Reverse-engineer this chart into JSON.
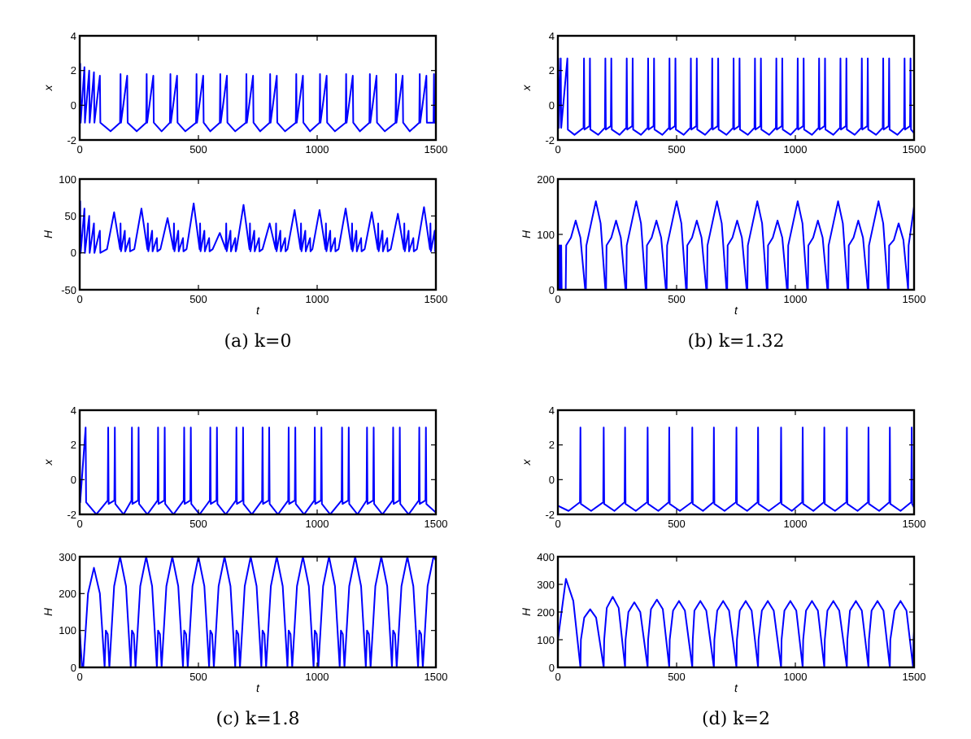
{
  "chart_data": [
    {
      "type": "line",
      "ylabel": "x",
      "xlim": [
        0,
        1500
      ],
      "ylim": [
        -2,
        4
      ],
      "xticks": [
        0,
        500,
        1000,
        1500
      ],
      "yticks": [
        -2,
        0,
        2,
        4
      ],
      "x": [
        0,
        2,
        4,
        20,
        22,
        40,
        42,
        60,
        62,
        85,
        87,
        130,
        170,
        172,
        174,
        200,
        202,
        240,
        280,
        282,
        284,
        310,
        312,
        345,
        380,
        382,
        384,
        410,
        412,
        445,
        490,
        492,
        494,
        520,
        522,
        550,
        590,
        592,
        594,
        620,
        622,
        655,
        700,
        702,
        704,
        730,
        732,
        760,
        800,
        802,
        804,
        830,
        832,
        865,
        910,
        912,
        914,
        940,
        942,
        970,
        1010,
        1012,
        1014,
        1040,
        1042,
        1075,
        1120,
        1122,
        1124,
        1150,
        1152,
        1180,
        1220,
        1222,
        1224,
        1250,
        1252,
        1285,
        1330,
        1332,
        1334,
        1360,
        1362,
        1390,
        1430,
        1432,
        1434,
        1460,
        1462,
        1490,
        1492,
        1494,
        1500
      ],
      "series": [
        {
          "color": "#0000ff",
          "values": [
            -1,
            2.4,
            -1,
            2.2,
            -1,
            2,
            -1,
            1.9,
            -1,
            1.7,
            -1,
            -1.5,
            -1,
            1.8,
            -1,
            1.7,
            -1,
            -1.5,
            -1,
            1.8,
            -1,
            1.7,
            -1,
            -1.5,
            -1,
            1.8,
            -1,
            1.7,
            -1,
            -1.5,
            -1,
            1.8,
            -1,
            1.7,
            -1,
            -1.5,
            -1,
            1.8,
            -1,
            1.7,
            -1,
            -1.5,
            -1,
            1.8,
            -1,
            1.7,
            -1,
            -1.5,
            -1,
            1.8,
            -1,
            1.7,
            -1,
            -1.5,
            -1,
            1.8,
            -1,
            1.7,
            -1,
            -1.5,
            -1,
            1.8,
            -1,
            1.7,
            -1,
            -1.5,
            -1,
            1.8,
            -1,
            1.7,
            -1,
            -1.5,
            -1,
            1.8,
            -1,
            1.7,
            -1,
            -1.5,
            -1,
            1.8,
            -1,
            1.7,
            -1,
            -1.5,
            -1,
            1.8,
            -1,
            1.7,
            -1,
            -1,
            1.8,
            -1,
            -1
          ]
        }
      ]
    },
    {
      "type": "line",
      "xlabel": "t",
      "ylabel": "H",
      "annotations": [
        "(a) k=0"
      ],
      "xlim": [
        0,
        1500
      ],
      "ylim": [
        -50,
        100
      ],
      "xticks": [
        0,
        500,
        1000,
        1500
      ],
      "yticks": [
        -50,
        0,
        50,
        100
      ],
      "x": [
        0,
        2,
        4,
        20,
        22,
        40,
        42,
        60,
        62,
        85,
        87,
        115,
        145,
        170,
        172,
        174,
        190,
        192,
        210,
        212,
        230,
        260,
        285,
        287,
        289,
        305,
        307,
        325,
        327,
        340,
        370,
        395,
        397,
        399,
        415,
        417,
        435,
        437,
        450,
        480,
        505,
        507,
        509,
        525,
        527,
        545,
        547,
        560,
        590,
        615,
        617,
        619,
        635,
        637,
        655,
        657,
        660,
        690,
        715,
        717,
        719,
        735,
        737,
        755,
        757,
        770,
        800,
        825,
        827,
        829,
        845,
        847,
        865,
        867,
        875,
        905,
        930,
        932,
        934,
        950,
        952,
        970,
        972,
        980,
        1010,
        1035,
        1037,
        1039,
        1055,
        1057,
        1075,
        1077,
        1090,
        1120,
        1145,
        1147,
        1149,
        1165,
        1167,
        1185,
        1187,
        1200,
        1230,
        1255,
        1257,
        1259,
        1275,
        1277,
        1295,
        1297,
        1310,
        1340,
        1365,
        1367,
        1369,
        1385,
        1387,
        1405,
        1407,
        1420,
        1450,
        1475,
        1477,
        1479,
        1495,
        1497,
        1500
      ],
      "series": [
        {
          "color": "#0000ff",
          "values": [
            0,
            70,
            0,
            60,
            0,
            50,
            0,
            40,
            0,
            30,
            0,
            5,
            55,
            5,
            40,
            2,
            30,
            2,
            20,
            2,
            5,
            60,
            5,
            40,
            2,
            30,
            2,
            20,
            2,
            5,
            47,
            5,
            40,
            2,
            30,
            2,
            20,
            2,
            5,
            67,
            5,
            40,
            2,
            30,
            2,
            20,
            2,
            5,
            27,
            5,
            40,
            2,
            30,
            2,
            20,
            2,
            5,
            65,
            5,
            40,
            2,
            30,
            2,
            20,
            2,
            5,
            40,
            5,
            40,
            2,
            30,
            2,
            20,
            2,
            5,
            58,
            5,
            40,
            2,
            30,
            2,
            20,
            2,
            5,
            58,
            5,
            40,
            2,
            30,
            2,
            20,
            2,
            5,
            60,
            5,
            40,
            2,
            30,
            2,
            20,
            2,
            5,
            55,
            5,
            40,
            2,
            30,
            2,
            20,
            2,
            5,
            53,
            5,
            40,
            2,
            30,
            2,
            20,
            2,
            5,
            62,
            5,
            40,
            2,
            30,
            2,
            35
          ]
        }
      ]
    },
    {
      "type": "line",
      "ylabel": "x",
      "xlim": [
        0,
        1500
      ],
      "ylim": [
        -2,
        4
      ],
      "xticks": [
        0,
        500,
        1000,
        1500
      ],
      "yticks": [
        -2,
        0,
        2,
        4
      ],
      "x": [
        0,
        2,
        4,
        12,
        14,
        40,
        42,
        70,
        108,
        110,
        112,
        133,
        135,
        137,
        170,
        198,
        200,
        202,
        223,
        225,
        227,
        260,
        288,
        290,
        292,
        313,
        315,
        317,
        350,
        378,
        380,
        382,
        403,
        405,
        407,
        440,
        468,
        470,
        472,
        493,
        495,
        497,
        530,
        558,
        560,
        562,
        583,
        585,
        587,
        620,
        648,
        650,
        652,
        673,
        675,
        677,
        710,
        738,
        740,
        742,
        763,
        765,
        767,
        800,
        828,
        830,
        832,
        853,
        855,
        857,
        890,
        918,
        920,
        922,
        943,
        945,
        947,
        980,
        1008,
        1010,
        1012,
        1033,
        1035,
        1037,
        1070,
        1098,
        1100,
        1102,
        1123,
        1125,
        1127,
        1160,
        1188,
        1190,
        1192,
        1213,
        1215,
        1217,
        1250,
        1278,
        1280,
        1282,
        1303,
        1305,
        1307,
        1340,
        1368,
        1370,
        1372,
        1393,
        1395,
        1397,
        1430,
        1458,
        1460,
        1462,
        1483,
        1485,
        1487,
        1500
      ],
      "series": [
        {
          "color": "#0000ff",
          "values": [
            -1.3,
            2.7,
            -1.3,
            2.7,
            -1.3,
            2.7,
            -1.4,
            -1.7,
            -1.3,
            2.7,
            -1.4,
            -1.2,
            2.7,
            -1.4,
            -1.7,
            -1.3,
            2.7,
            -1.4,
            -1.2,
            2.7,
            -1.4,
            -1.7,
            -1.3,
            2.7,
            -1.4,
            -1.2,
            2.7,
            -1.4,
            -1.7,
            -1.3,
            2.7,
            -1.4,
            -1.2,
            2.7,
            -1.4,
            -1.7,
            -1.3,
            2.7,
            -1.4,
            -1.2,
            2.7,
            -1.4,
            -1.7,
            -1.3,
            2.7,
            -1.4,
            -1.2,
            2.7,
            -1.4,
            -1.7,
            -1.3,
            2.7,
            -1.4,
            -1.2,
            2.7,
            -1.4,
            -1.7,
            -1.3,
            2.7,
            -1.4,
            -1.2,
            2.7,
            -1.4,
            -1.7,
            -1.3,
            2.7,
            -1.4,
            -1.2,
            2.7,
            -1.4,
            -1.7,
            -1.3,
            2.7,
            -1.4,
            -1.2,
            2.7,
            -1.4,
            -1.7,
            -1.3,
            2.7,
            -1.4,
            -1.2,
            2.7,
            -1.4,
            -1.7,
            -1.3,
            2.7,
            -1.4,
            -1.2,
            2.7,
            -1.4,
            -1.7,
            -1.3,
            2.7,
            -1.4,
            -1.2,
            2.7,
            -1.4,
            -1.7,
            -1.3,
            2.7,
            -1.4,
            -1.2,
            2.7,
            -1.4,
            -1.7,
            -1.3,
            2.7,
            -1.4,
            -1.2,
            2.7,
            -1.4,
            -1.7,
            -1.3,
            2.7,
            -1.4,
            -1.2,
            2.7,
            -1.4,
            -1.6
          ]
        }
      ]
    },
    {
      "type": "line",
      "xlabel": "t",
      "ylabel": "H",
      "annotations": [
        "(b) k=1.32"
      ],
      "xlim": [
        0,
        1500
      ],
      "ylim": [
        0,
        200
      ],
      "xticks": [
        0,
        500,
        1000,
        1500
      ],
      "yticks": [
        0,
        100,
        200
      ],
      "x": [
        0,
        2,
        4,
        8,
        10,
        14,
        16,
        33,
        35,
        55,
        75,
        95,
        115,
        118,
        120,
        140,
        160,
        180,
        200,
        203,
        205,
        225,
        245,
        265,
        285,
        288,
        290,
        310,
        330,
        350,
        370,
        373,
        375,
        395,
        415,
        435,
        455,
        458,
        460,
        480,
        500,
        520,
        540,
        543,
        545,
        565,
        585,
        605,
        625,
        628,
        630,
        650,
        670,
        690,
        710,
        713,
        715,
        735,
        755,
        775,
        795,
        798,
        800,
        820,
        840,
        860,
        880,
        883,
        885,
        905,
        925,
        945,
        965,
        968,
        970,
        990,
        1010,
        1030,
        1050,
        1053,
        1055,
        1075,
        1095,
        1115,
        1135,
        1138,
        1140,
        1160,
        1180,
        1200,
        1220,
        1223,
        1225,
        1245,
        1265,
        1285,
        1305,
        1308,
        1310,
        1330,
        1350,
        1370,
        1390,
        1393,
        1395,
        1415,
        1435,
        1455,
        1475,
        1477,
        1500
      ],
      "series": [
        {
          "color": "#0000ff",
          "values": [
            0,
            80,
            0,
            80,
            0,
            80,
            0,
            0,
            80,
            94,
            125,
            94,
            0,
            0,
            80,
            120,
            160,
            120,
            0,
            0,
            80,
            94,
            125,
            94,
            0,
            0,
            80,
            120,
            160,
            120,
            0,
            0,
            80,
            94,
            125,
            94,
            0,
            0,
            80,
            120,
            160,
            120,
            0,
            0,
            80,
            94,
            125,
            94,
            0,
            0,
            80,
            120,
            160,
            120,
            0,
            0,
            80,
            94,
            125,
            94,
            0,
            0,
            80,
            120,
            160,
            120,
            0,
            0,
            80,
            94,
            125,
            94,
            0,
            0,
            80,
            120,
            160,
            120,
            0,
            0,
            80,
            94,
            125,
            94,
            0,
            0,
            80,
            120,
            160,
            120,
            0,
            0,
            80,
            94,
            125,
            94,
            0,
            0,
            80,
            120,
            160,
            120,
            0,
            0,
            80,
            90,
            120,
            90,
            0,
            80,
            150
          ]
        }
      ]
    },
    {
      "type": "line",
      "ylabel": "x",
      "xlim": [
        0,
        1500
      ],
      "ylim": [
        -2,
        4
      ],
      "xticks": [
        0,
        500,
        1000,
        1500
      ],
      "yticks": [
        -2,
        0,
        2,
        4
      ],
      "x": [
        0,
        2,
        25,
        27,
        70,
        118,
        120,
        122,
        146,
        148,
        150,
        185,
        218,
        220,
        222,
        246,
        248,
        250,
        285,
        328,
        330,
        332,
        356,
        358,
        360,
        395,
        438,
        440,
        442,
        466,
        468,
        470,
        505,
        548,
        550,
        552,
        576,
        578,
        580,
        615,
        658,
        660,
        662,
        686,
        688,
        690,
        725,
        768,
        770,
        772,
        796,
        798,
        800,
        835,
        878,
        880,
        882,
        906,
        908,
        910,
        945,
        988,
        990,
        992,
        1016,
        1018,
        1020,
        1055,
        1103,
        1105,
        1107,
        1131,
        1133,
        1135,
        1170,
        1208,
        1210,
        1212,
        1236,
        1238,
        1240,
        1275,
        1318,
        1320,
        1322,
        1346,
        1348,
        1350,
        1385,
        1428,
        1430,
        1432,
        1456,
        1458,
        1460,
        1500
      ],
      "series": [
        {
          "color": "#0000ff",
          "values": [
            3,
            -1.3,
            3,
            -1.3,
            -2,
            -1.2,
            3,
            -1.4,
            -1.2,
            3,
            -1.4,
            -2,
            -1.2,
            3,
            -1.4,
            -1.2,
            3,
            -1.4,
            -2,
            -1.2,
            3,
            -1.4,
            -1.2,
            3,
            -1.4,
            -2,
            -1.2,
            3,
            -1.4,
            -1.2,
            3,
            -1.4,
            -2,
            -1.2,
            3,
            -1.4,
            -1.2,
            3,
            -1.4,
            -2,
            -1.2,
            3,
            -1.4,
            -1.2,
            3,
            -1.4,
            -2,
            -1.2,
            3,
            -1.4,
            -1.2,
            3,
            -1.4,
            -2,
            -1.2,
            3,
            -1.4,
            -1.2,
            3,
            -1.4,
            -2,
            -1.2,
            3,
            -1.4,
            -1.2,
            3,
            -1.4,
            -2,
            -1.2,
            3,
            -1.4,
            -1.2,
            3,
            -1.4,
            -2,
            -1.2,
            3,
            -1.4,
            -1.2,
            3,
            -1.4,
            -2,
            -1.2,
            3,
            -1.4,
            -1.2,
            3,
            -1.4,
            -2,
            -1.2,
            3,
            -1.4,
            -1.2,
            3,
            -1.4,
            -1.9
          ]
        }
      ]
    },
    {
      "type": "line",
      "xlabel": "t",
      "ylabel": "H",
      "annotations": [
        "(c) k=1.8"
      ],
      "xlim": [
        0,
        1500
      ],
      "ylim": [
        0,
        300
      ],
      "xticks": [
        0,
        500,
        1000,
        1500
      ],
      "yticks": [
        0,
        100,
        200,
        300
      ],
      "x": [
        0,
        10,
        15,
        35,
        60,
        85,
        105,
        110,
        118,
        125,
        145,
        170,
        195,
        215,
        220,
        228,
        235,
        255,
        280,
        305,
        325,
        330,
        338,
        345,
        365,
        390,
        415,
        435,
        440,
        448,
        455,
        475,
        500,
        525,
        545,
        550,
        558,
        565,
        585,
        610,
        635,
        655,
        660,
        668,
        675,
        695,
        720,
        745,
        765,
        770,
        778,
        785,
        805,
        830,
        855,
        875,
        880,
        888,
        895,
        915,
        940,
        965,
        985,
        990,
        998,
        1005,
        1025,
        1050,
        1075,
        1095,
        1100,
        1108,
        1115,
        1135,
        1160,
        1185,
        1205,
        1210,
        1218,
        1225,
        1245,
        1270,
        1295,
        1315,
        1320,
        1328,
        1335,
        1355,
        1380,
        1405,
        1425,
        1430,
        1438,
        1445,
        1465,
        1490,
        1500
      ],
      "series": [
        {
          "color": "#0000ff",
          "values": [
            100,
            0,
            0,
            200,
            270,
            200,
            0,
            100,
            90,
            0,
            220,
            300,
            220,
            0,
            100,
            90,
            0,
            220,
            300,
            220,
            0,
            100,
            90,
            0,
            220,
            300,
            220,
            0,
            100,
            90,
            0,
            220,
            300,
            220,
            0,
            100,
            90,
            0,
            220,
            300,
            220,
            0,
            100,
            90,
            0,
            220,
            300,
            220,
            0,
            100,
            90,
            0,
            220,
            300,
            220,
            0,
            100,
            90,
            0,
            220,
            300,
            220,
            0,
            100,
            90,
            0,
            220,
            300,
            220,
            0,
            100,
            90,
            0,
            220,
            300,
            220,
            0,
            100,
            90,
            0,
            220,
            300,
            220,
            0,
            100,
            90,
            0,
            220,
            300,
            220,
            0,
            100,
            90,
            0,
            220,
            300,
            290
          ]
        }
      ]
    },
    {
      "type": "line",
      "ylabel": "x",
      "xlim": [
        0,
        1500
      ],
      "ylim": [
        -2,
        4
      ],
      "xticks": [
        0,
        500,
        1000,
        1500
      ],
      "yticks": [
        -2,
        0,
        2,
        4
      ],
      "x": [
        0,
        45,
        93,
        95,
        97,
        140,
        191,
        193,
        195,
        238,
        281,
        283,
        285,
        328,
        376,
        378,
        380,
        423,
        467,
        469,
        471,
        514,
        564,
        566,
        568,
        611,
        655,
        657,
        659,
        702,
        750,
        752,
        754,
        797,
        841,
        843,
        845,
        888,
        938,
        940,
        942,
        985,
        1029,
        1031,
        1033,
        1076,
        1120,
        1122,
        1124,
        1167,
        1215,
        1217,
        1219,
        1262,
        1306,
        1308,
        1310,
        1353,
        1396,
        1398,
        1400,
        1443,
        1488,
        1490,
        1492,
        1500
      ],
      "series": [
        {
          "color": "#0000ff",
          "values": [
            -1.5,
            -1.8,
            -1.3,
            3,
            -1.4,
            -1.8,
            -1.3,
            3,
            -1.4,
            -1.8,
            -1.3,
            3,
            -1.4,
            -1.8,
            -1.3,
            3,
            -1.4,
            -1.8,
            -1.3,
            3,
            -1.4,
            -1.8,
            -1.3,
            3,
            -1.4,
            -1.8,
            -1.3,
            3,
            -1.4,
            -1.8,
            -1.3,
            3,
            -1.4,
            -1.8,
            -1.3,
            3,
            -1.4,
            -1.8,
            -1.3,
            3,
            -1.4,
            -1.8,
            -1.3,
            3,
            -1.4,
            -1.8,
            -1.3,
            3,
            -1.4,
            -1.8,
            -1.3,
            3,
            -1.4,
            -1.8,
            -1.3,
            3,
            -1.4,
            -1.8,
            -1.3,
            3,
            -1.4,
            -1.8,
            -1.3,
            3,
            -1.4,
            -1.6
          ]
        }
      ]
    },
    {
      "type": "line",
      "xlabel": "t",
      "ylabel": "H",
      "annotations": [
        "(d) k=2"
      ],
      "xlim": [
        0,
        1500
      ],
      "ylim": [
        0,
        400
      ],
      "xticks": [
        0,
        500,
        1000,
        1500
      ],
      "yticks": [
        0,
        100,
        200,
        300,
        400
      ],
      "x": [
        0,
        34,
        65,
        95,
        97,
        111,
        136,
        161,
        193,
        195,
        206,
        231,
        256,
        283,
        285,
        297,
        322,
        347,
        378,
        380,
        392,
        417,
        442,
        469,
        471,
        485,
        510,
        535,
        566,
        568,
        575,
        600,
        625,
        657,
        659,
        671,
        696,
        721,
        752,
        754,
        766,
        791,
        816,
        843,
        845,
        859,
        884,
        909,
        940,
        942,
        954,
        979,
        1004,
        1031,
        1033,
        1045,
        1070,
        1095,
        1122,
        1124,
        1135,
        1160,
        1185,
        1217,
        1219,
        1230,
        1255,
        1280,
        1308,
        1310,
        1321,
        1346,
        1371,
        1398,
        1400,
        1418,
        1443,
        1468,
        1496,
        1498,
        1500
      ],
      "series": [
        {
          "color": "#0000ff",
          "values": [
            100,
            320,
            240,
            0,
            100,
            180,
            210,
            180,
            0,
            100,
            215,
            255,
            215,
            0,
            100,
            200,
            235,
            200,
            0,
            100,
            210,
            245,
            210,
            0,
            100,
            205,
            240,
            205,
            0,
            100,
            205,
            240,
            205,
            0,
            100,
            205,
            240,
            205,
            0,
            100,
            205,
            240,
            205,
            0,
            100,
            205,
            240,
            205,
            0,
            100,
            205,
            240,
            205,
            0,
            100,
            205,
            240,
            205,
            0,
            100,
            205,
            240,
            205,
            0,
            100,
            205,
            240,
            205,
            0,
            100,
            205,
            240,
            205,
            0,
            100,
            205,
            240,
            205,
            0,
            100,
            130
          ]
        }
      ]
    }
  ]
}
